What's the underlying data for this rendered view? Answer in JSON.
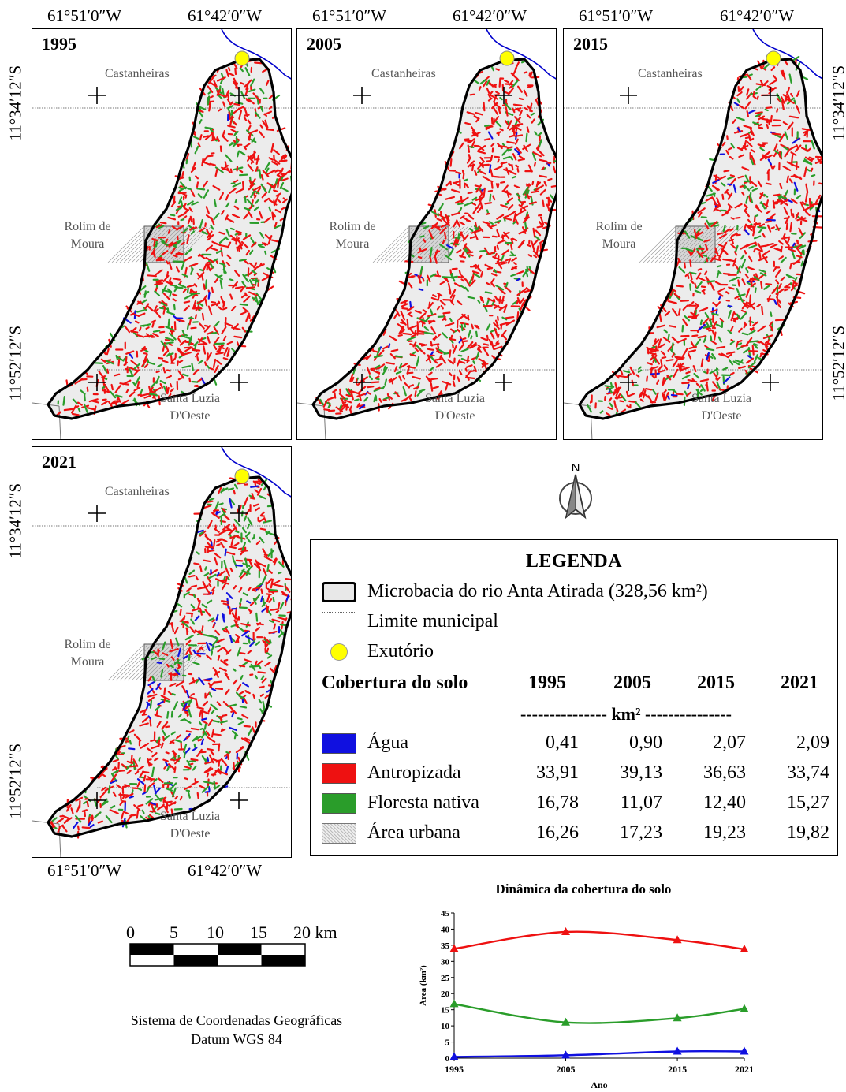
{
  "map": {
    "coords_top": [
      "61°51′0″W",
      "61°42′0″W"
    ],
    "coords_bottom": [
      "61°51′0″W",
      "61°42′0″W"
    ],
    "lat_labels": [
      "11°34′12″S",
      "11°52′12″S"
    ],
    "places": {
      "castanheiras": "Castanheiras",
      "rolim_line1": "Rolim de",
      "rolim_line2": "Moura",
      "santa_line1": "Santa Luzia",
      "santa_line2": "D'Oeste"
    },
    "panels": [
      {
        "year": "1995",
        "forest_share": 0.34,
        "water_share": 0.01
      },
      {
        "year": "2005",
        "forest_share": 0.2,
        "water_share": 0.02
      },
      {
        "year": "2015",
        "forest_share": 0.24,
        "water_share": 0.04
      },
      {
        "year": "2021",
        "forest_share": 0.28,
        "water_share": 0.1
      }
    ],
    "north_label": "N"
  },
  "legend": {
    "title": "LEGENDA",
    "items": [
      {
        "label": "Microbacia do rio Anta Atirada (328,56 km²)",
        "icon": "basin-swatch"
      },
      {
        "label": "Limite municipal",
        "icon": "dotted-line-swatch"
      },
      {
        "label": "Exutório",
        "icon": "yellow-dot"
      }
    ],
    "table_header": "Cobertura do solo",
    "years": [
      "1995",
      "2005",
      "2015",
      "2021"
    ],
    "unit_line": "--------------- km² ---------------",
    "rows": [
      {
        "label": "Água",
        "color": "#1010e0",
        "values": [
          "0,41",
          "0,90",
          "2,07",
          "2,09"
        ]
      },
      {
        "label": "Antropizada",
        "color": "#ee1111",
        "values": [
          "33,91",
          "39,13",
          "36,63",
          "33,74"
        ]
      },
      {
        "label": "Floresta nativa",
        "color": "#2a9d2a",
        "values": [
          "16,78",
          "11,07",
          "12,40",
          "15,27"
        ]
      },
      {
        "label": "Área urbana",
        "color": "#dddddd",
        "values": [
          "16,26",
          "17,23",
          "19,23",
          "19,82"
        ]
      }
    ]
  },
  "scale": {
    "labels": [
      "0",
      "5",
      "10",
      "15",
      "20 km"
    ]
  },
  "coordinate_system": {
    "line1": "Sistema de Coordenadas Geográficas",
    "line2": "Datum WGS 84"
  },
  "chart_data": {
    "type": "line",
    "title": "Dinâmica da cobertura do solo",
    "xlabel": "Ano",
    "ylabel": "Área (km²)",
    "x": [
      1995,
      2005,
      2015,
      2021
    ],
    "ylim": [
      0,
      45
    ],
    "yticks": [
      0,
      5,
      10,
      15,
      20,
      25,
      30,
      35,
      40,
      45
    ],
    "series": [
      {
        "color": "#ee1111",
        "values": [
          33.91,
          39.13,
          36.63,
          33.74
        ]
      },
      {
        "color": "#2a9d2a",
        "values": [
          16.78,
          11.07,
          12.4,
          15.27
        ]
      },
      {
        "color": "#1010e0",
        "values": [
          0.41,
          0.9,
          2.07,
          2.09
        ]
      }
    ]
  }
}
